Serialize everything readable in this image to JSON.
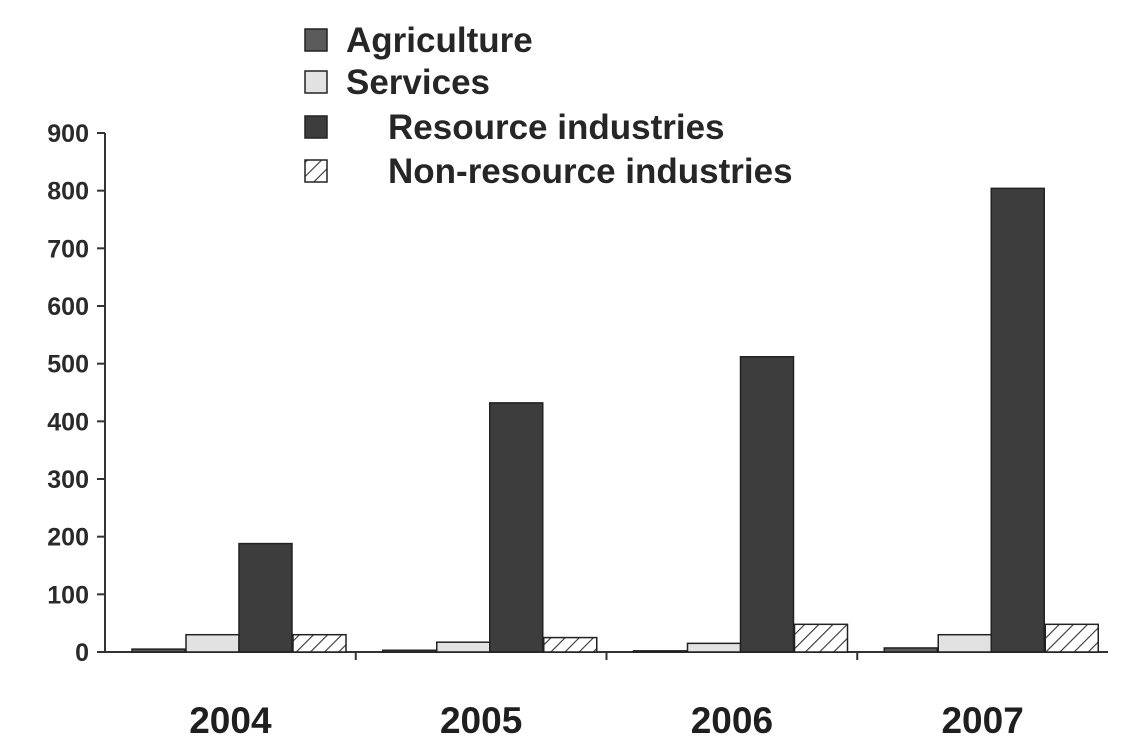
{
  "chart_data": {
    "type": "bar",
    "categories": [
      "2004",
      "2005",
      "2006",
      "2007"
    ],
    "series": [
      {
        "name": "Agriculture",
        "values": [
          5,
          3,
          2,
          7
        ],
        "color": "#5a5a5a",
        "pattern": "solid"
      },
      {
        "name": "Services",
        "values": [
          30,
          17,
          15,
          30
        ],
        "color": "#e2e2e2",
        "pattern": "solid"
      },
      {
        "name": "Resource industries",
        "values": [
          188,
          432,
          512,
          804
        ],
        "color": "#3d3d3d",
        "pattern": "solid"
      },
      {
        "name": "Non-resource industries",
        "values": [
          30,
          25,
          48,
          48
        ],
        "color": "#ffffff",
        "pattern": "hatch"
      }
    ],
    "yticks": [
      "0",
      "100",
      "200",
      "300",
      "400",
      "500",
      "600",
      "700",
      "800",
      "900"
    ],
    "ylim": [
      0,
      900
    ],
    "grid": false,
    "legend_position": "top"
  }
}
